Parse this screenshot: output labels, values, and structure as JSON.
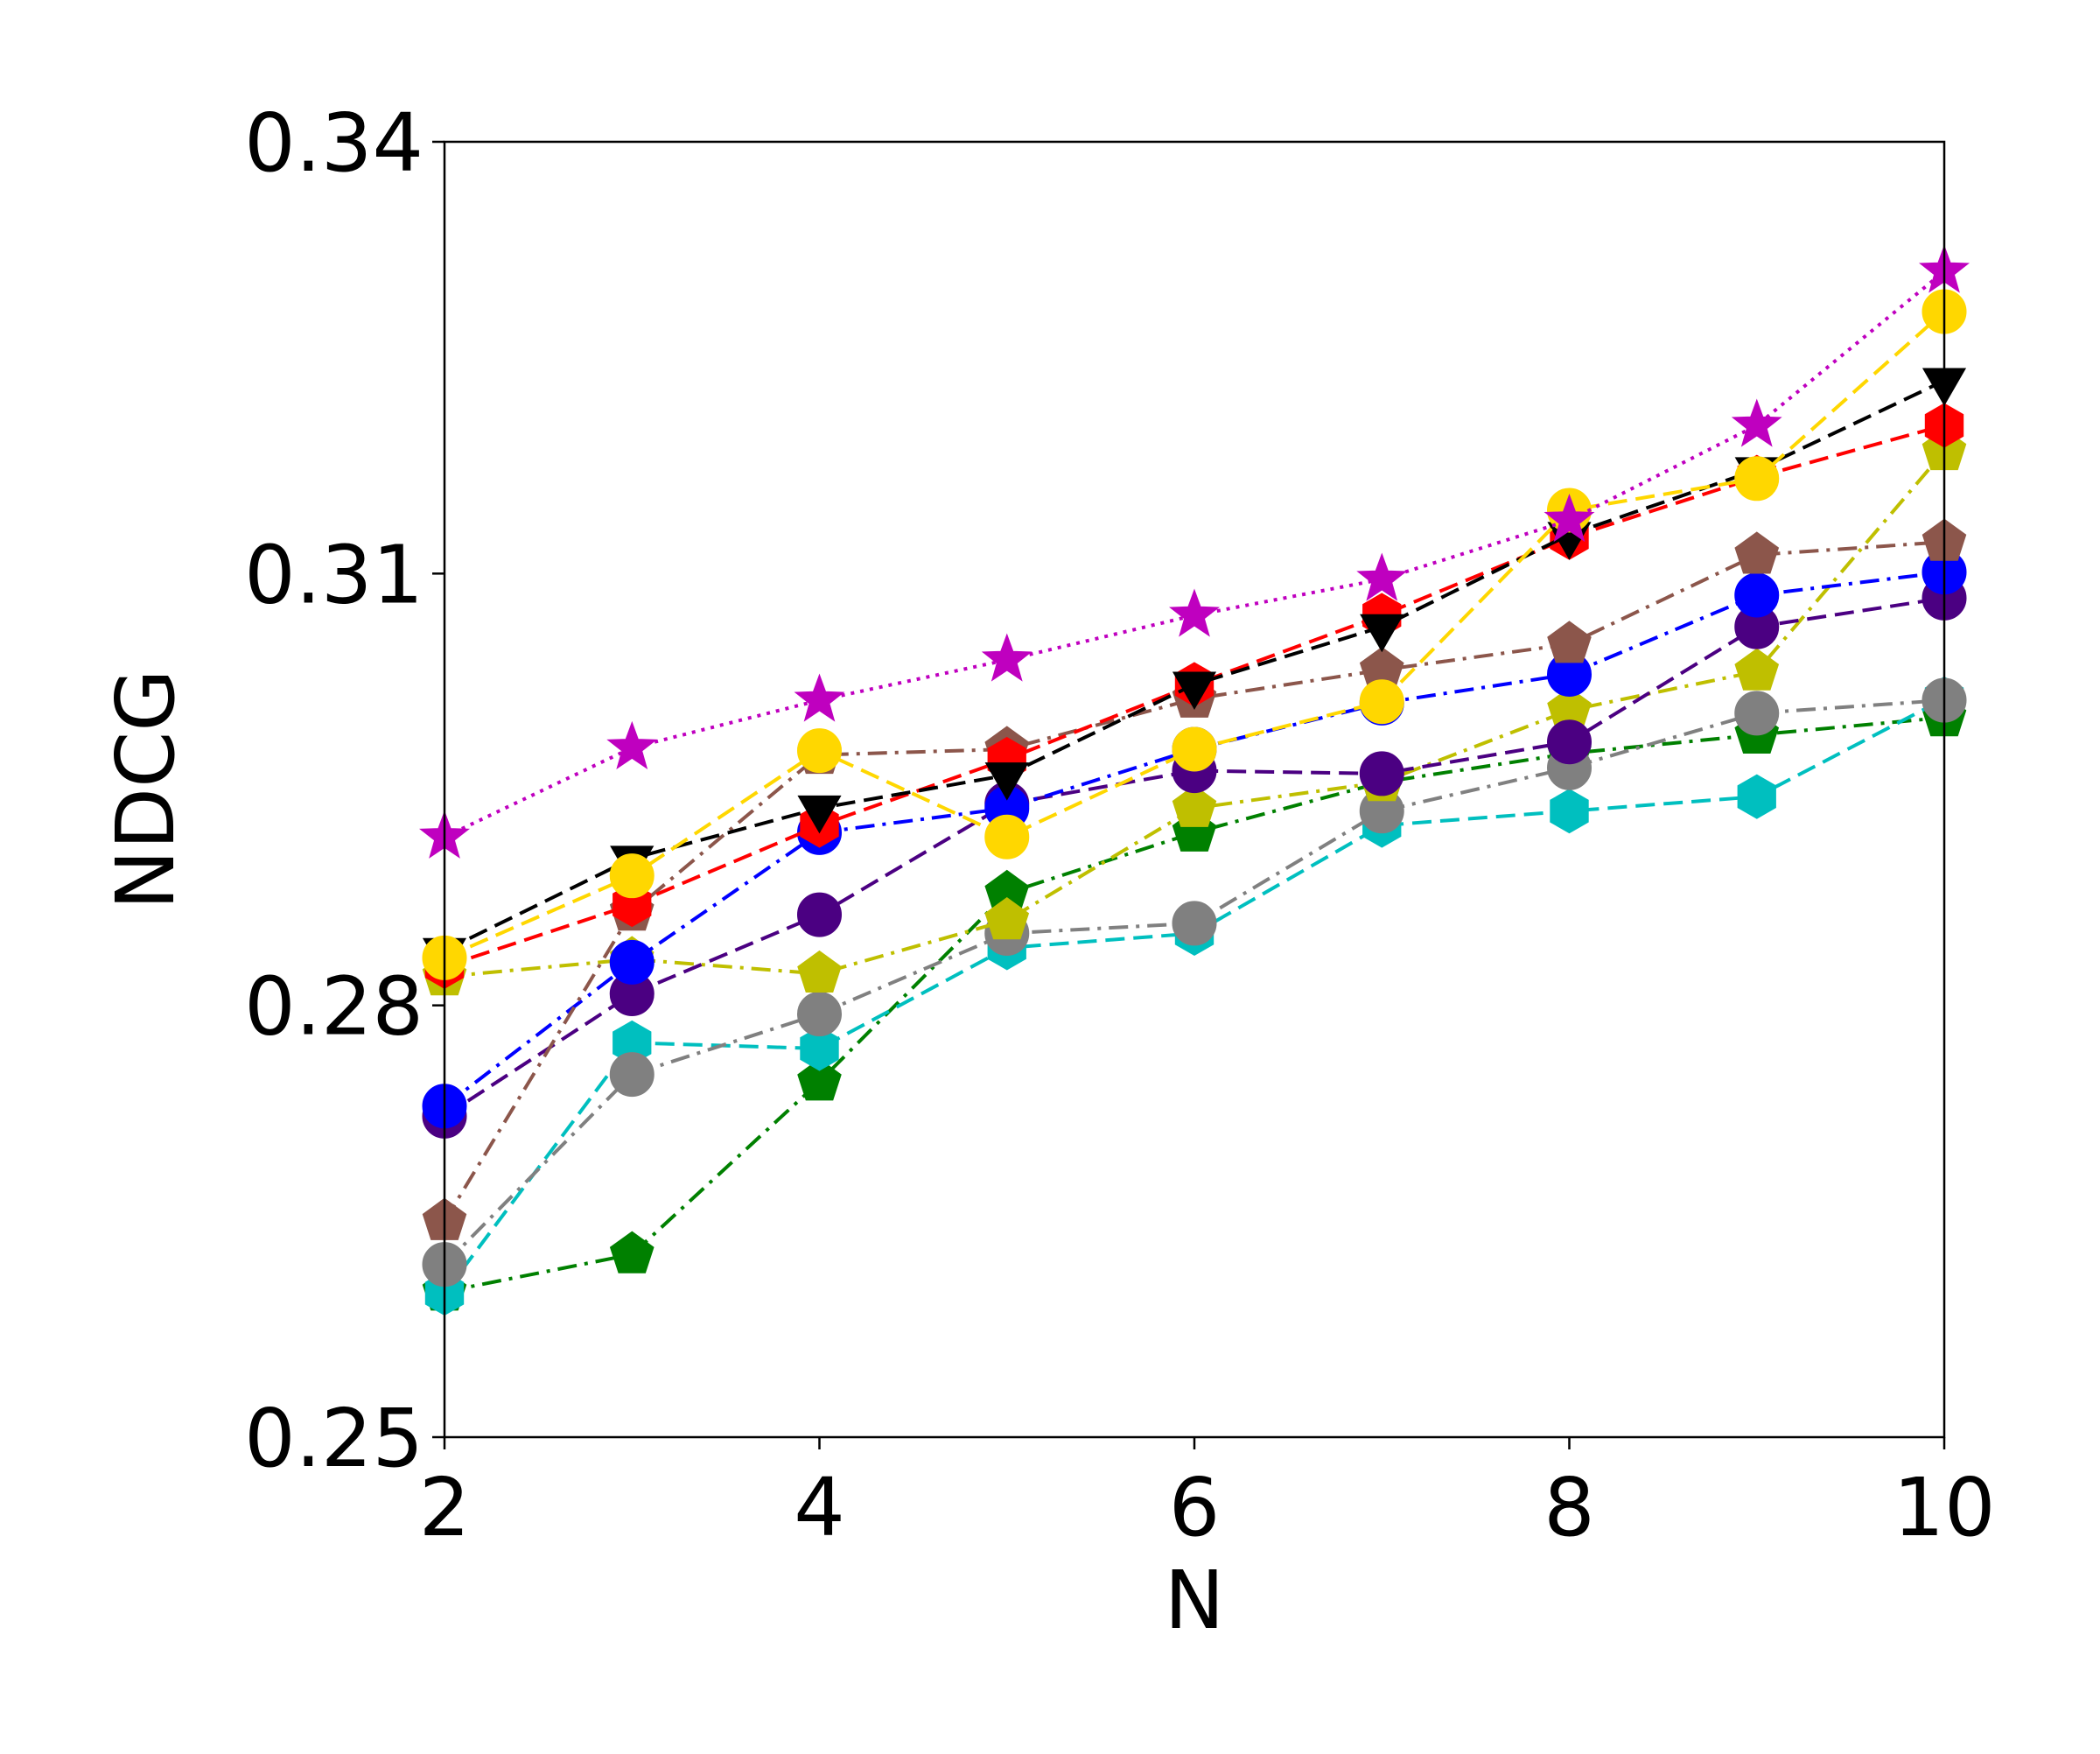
{
  "chart_data": {
    "type": "line",
    "title": "",
    "xlabel": "N",
    "ylabel": "NDCG",
    "xlim": [
      2,
      10
    ],
    "ylim": [
      0.25,
      0.34
    ],
    "x_ticks": [
      2,
      4,
      6,
      8,
      10
    ],
    "x_tick_labels": [
      "2",
      "4",
      "6",
      "8",
      "10"
    ],
    "y_ticks": [
      0.25,
      0.28,
      0.31,
      0.34
    ],
    "y_tick_labels": [
      "0.25",
      "0.28",
      "0.31",
      "0.34"
    ],
    "grid": false,
    "legend": "none",
    "x": [
      2,
      3,
      4,
      5,
      6,
      7,
      8,
      9,
      10
    ],
    "series": [
      {
        "color": "#008000",
        "marker": "pentagon",
        "line": "dashdot",
        "values": [
          0.2601,
          0.2627,
          0.2747,
          0.2878,
          0.292,
          0.2955,
          0.2975,
          0.2988,
          0.3
        ]
      },
      {
        "color": "#00bfbf",
        "marker": "hexagon",
        "line": "dashed",
        "values": [
          0.26,
          0.2774,
          0.277,
          0.284,
          0.285,
          0.2925,
          0.2935,
          0.2945,
          0.3013
        ]
      },
      {
        "color": "#808080",
        "marker": "circle",
        "line": "dashdot",
        "values": [
          0.262,
          0.2752,
          0.2794,
          0.285,
          0.2857,
          0.2935,
          0.2965,
          0.3003,
          0.3012
        ]
      },
      {
        "color": "#bfbf00",
        "marker": "pentagon",
        "line": "dashdot",
        "values": [
          0.282,
          0.2832,
          0.2822,
          0.2859,
          0.2937,
          0.2955,
          0.3005,
          0.3032,
          0.3185
        ]
      },
      {
        "color": "#4b0082",
        "marker": "circle",
        "line": "dashed",
        "values": [
          0.2723,
          0.2808,
          0.2863,
          0.294,
          0.2963,
          0.2961,
          0.2983,
          0.3063,
          0.3083
        ]
      },
      {
        "color": "#0000ff",
        "marker": "circle",
        "line": "dashdot",
        "values": [
          0.273,
          0.283,
          0.292,
          0.2937,
          0.2978,
          0.301,
          0.303,
          0.3085,
          0.3101
        ]
      },
      {
        "color": "#8c564b",
        "marker": "pentagon",
        "line": "dashdot",
        "values": [
          0.265,
          0.2865,
          0.2974,
          0.2978,
          0.3013,
          0.3033,
          0.3051,
          0.3113,
          0.3122
        ]
      },
      {
        "color": "#ff0000",
        "marker": "hexagon",
        "line": "dashed",
        "values": [
          0.2827,
          0.287,
          0.2925,
          0.2971,
          0.3023,
          0.3071,
          0.3125,
          0.3167,
          0.3203
        ]
      },
      {
        "color": "#000000",
        "marker": "triangle-down",
        "line": "dashed",
        "values": [
          0.2838,
          0.2902,
          0.2937,
          0.296,
          0.3023,
          0.3063,
          0.3127,
          0.3172,
          0.3234
        ]
      },
      {
        "color": "#ffd700",
        "marker": "circle",
        "line": "dashed",
        "values": [
          0.2833,
          0.289,
          0.2977,
          0.2917,
          0.2978,
          0.3011,
          0.3144,
          0.3166,
          0.3282
        ]
      },
      {
        "color": "#bf00bf",
        "marker": "star",
        "line": "dotted",
        "values": [
          0.2917,
          0.2979,
          0.3012,
          0.304,
          0.3071,
          0.3096,
          0.3137,
          0.3203,
          0.331
        ]
      }
    ]
  }
}
